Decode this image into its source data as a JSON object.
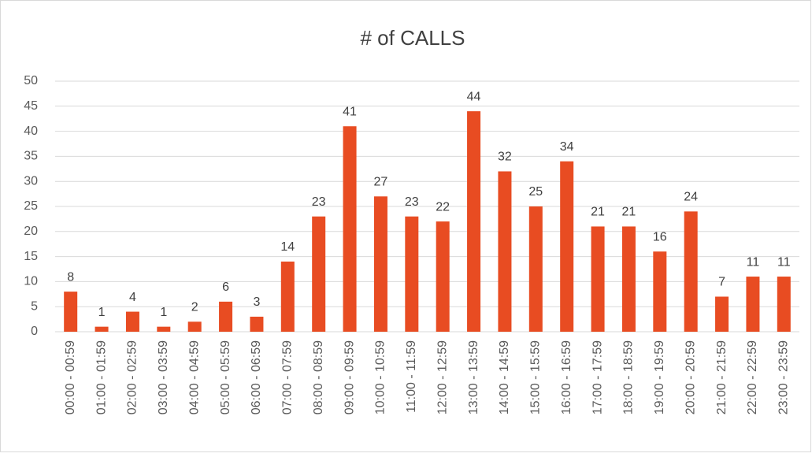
{
  "chart_data": {
    "type": "bar",
    "title": "# of CALLS",
    "categories": [
      "00:00 - 00:59",
      "01:00 - 01:59",
      "02:00 - 02:59",
      "03:00 - 03:59",
      "04:00 - 04:59",
      "05:00 - 05:59",
      "06:00 - 06:59",
      "07:00 - 07:59",
      "08:00 - 08:59",
      "09:00 - 09:59",
      "10:00 - 10:59",
      "11:00 - 11:59",
      "12:00 - 12:59",
      "13:00 - 13:59",
      "14:00 - 14:59",
      "15:00 - 15:59",
      "16:00 - 16:59",
      "17:00 - 17:59",
      "18:00 - 18:59",
      "19:00 - 19:59",
      "20:00 - 20:59",
      "21:00 - 21:59",
      "22:00 - 22:59",
      "23:00 - 23:59"
    ],
    "values": [
      8,
      1,
      4,
      1,
      2,
      6,
      3,
      14,
      23,
      41,
      27,
      23,
      22,
      44,
      32,
      25,
      34,
      21,
      21,
      16,
      24,
      7,
      11,
      11
    ],
    "color": "#e84c22",
    "ylim": [
      0,
      50
    ],
    "yticks": [
      0,
      5,
      10,
      15,
      20,
      25,
      30,
      35,
      40,
      45,
      50
    ],
    "grid": true
  }
}
